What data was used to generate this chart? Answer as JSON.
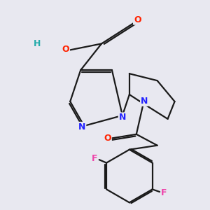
{
  "background_color": "#e8e8f0",
  "bond_color": "#1a1a1a",
  "bond_width": 1.6,
  "atom_colors": {
    "O": "#ff2200",
    "N": "#2222ff",
    "F": "#ee44aa",
    "H": "#22aaaa",
    "C": "#1a1a1a"
  },
  "font_size": 9,
  "fig_size": [
    3.0,
    3.0
  ],
  "dpi": 100
}
